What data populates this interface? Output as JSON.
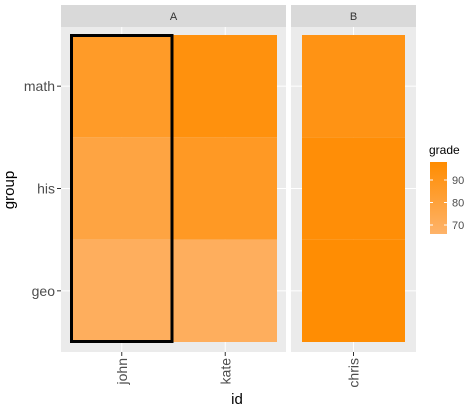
{
  "chart_data": {
    "type": "heatmap",
    "xlabel": "id",
    "ylabel": "group",
    "y_categories": [
      "geo",
      "his",
      "math"
    ],
    "facets": [
      {
        "label": "A",
        "x_categories": [
          "john",
          "kate"
        ],
        "cells": [
          {
            "x": "john",
            "y": "math",
            "value": 86
          },
          {
            "x": "john",
            "y": "his",
            "value": 78
          },
          {
            "x": "john",
            "y": "geo",
            "value": 70
          },
          {
            "x": "kate",
            "y": "math",
            "value": 94
          },
          {
            "x": "kate",
            "y": "his",
            "value": 87
          },
          {
            "x": "kate",
            "y": "geo",
            "value": 70
          }
        ],
        "highlight": "john"
      },
      {
        "label": "B",
        "x_categories": [
          "chris"
        ],
        "cells": [
          {
            "x": "chris",
            "y": "math",
            "value": 92
          },
          {
            "x": "chris",
            "y": "his",
            "value": 96
          },
          {
            "x": "chris",
            "y": "geo",
            "value": 97
          }
        ]
      }
    ],
    "legend": {
      "title": "grade",
      "breaks": [
        90,
        80,
        70
      ],
      "range": [
        66,
        98
      ],
      "low_color": "#FEB36A",
      "high_color": "#FF8C00",
      "placement": "right"
    },
    "panel_background": "#EBEBEB",
    "strip_background": "#D9D9D9",
    "grid": true
  }
}
